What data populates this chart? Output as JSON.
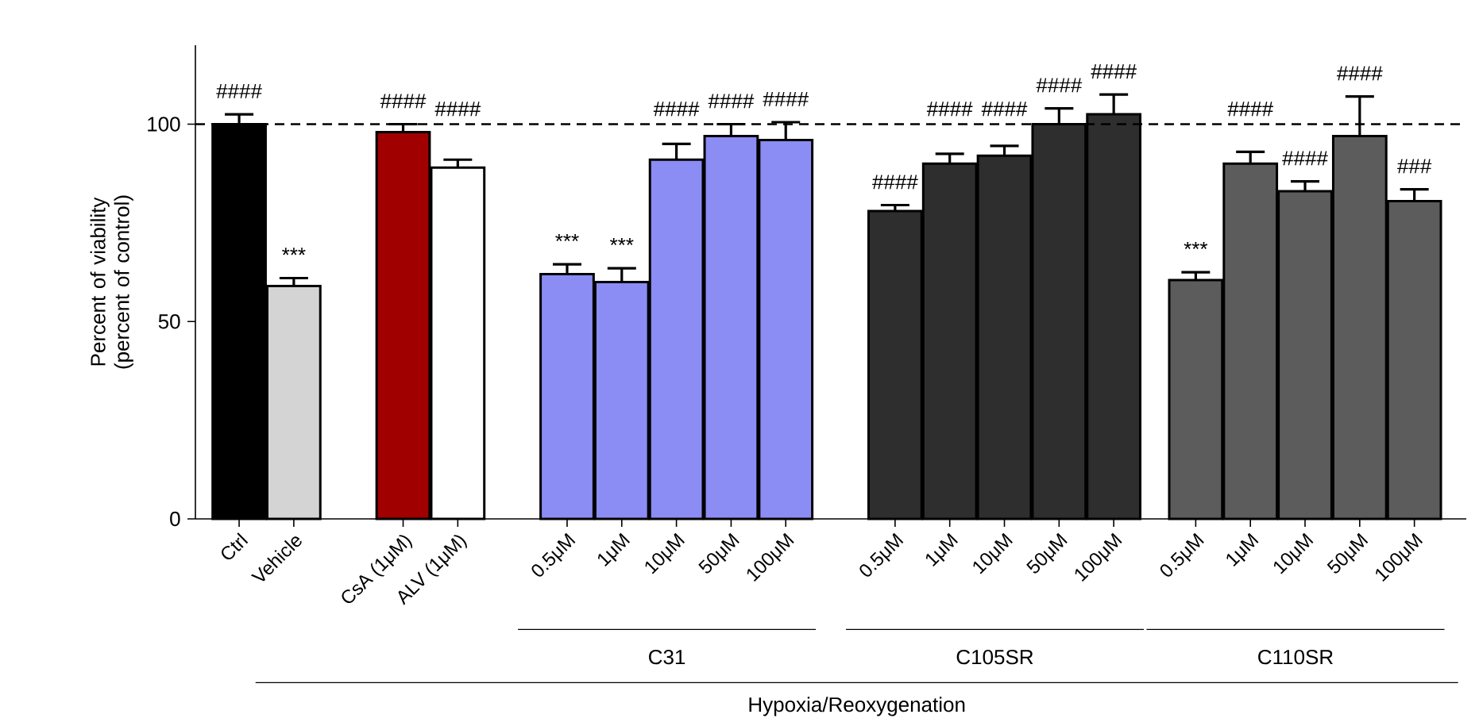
{
  "chart_data": {
    "type": "bar",
    "ylabel": "Percent of viability (percent of control)",
    "categories": [
      "Ctrl",
      "Vehicle",
      "CsA (1μM)",
      "ALV (1μM)",
      "0.5μM",
      "1μM",
      "10μM",
      "50μM",
      "100μM",
      "0.5μM",
      "1μM",
      "10μM",
      "50μM",
      "100μM",
      "0.5μM",
      "1μM",
      "10μM",
      "50μM",
      "100μM"
    ],
    "values": [
      100,
      59,
      98,
      89,
      62,
      60,
      91,
      97,
      96,
      78,
      90,
      92,
      100,
      102.5,
      60.5,
      90,
      83,
      97,
      80.5
    ],
    "errors": [
      [
        100,
        102.5
      ],
      [
        59,
        61
      ],
      [
        98,
        100
      ],
      [
        89,
        91
      ],
      [
        62,
        64.5
      ],
      [
        60,
        63.5
      ],
      [
        91,
        95
      ],
      [
        97,
        100
      ],
      [
        96,
        100.5
      ],
      [
        78,
        79.5
      ],
      [
        90,
        92.5
      ],
      [
        92,
        94.5
      ],
      [
        100,
        104
      ],
      [
        102.5,
        107.5
      ],
      [
        60.5,
        62.5
      ],
      [
        90,
        93
      ],
      [
        83,
        85.5
      ],
      [
        97,
        107
      ],
      [
        80.5,
        83.5
      ]
    ],
    "colors": [
      "#000000",
      "#d4d4d4",
      "#a00000",
      "#ffffff",
      "#8c8cf5",
      "#8c8cf5",
      "#8c8cf5",
      "#8c8cf5",
      "#8c8cf5",
      "#2e2e2e",
      "#2e2e2e",
      "#2e2e2e",
      "#2e2e2e",
      "#2e2e2e",
      "#5c5c5c",
      "#5c5c5c",
      "#5c5c5c",
      "#5c5c5c",
      "#5c5c5c"
    ],
    "ylim": [
      0,
      120
    ],
    "yticks": [
      0,
      50,
      100
    ],
    "ref_lines": [
      {
        "axis": "y",
        "value": 100,
        "line_style": "dashed",
        "color": "#000000"
      }
    ],
    "annotations": [
      "####",
      "***",
      "####",
      "####",
      "***",
      "***",
      "####",
      "####",
      "####",
      "####",
      "####",
      "####",
      "####",
      "####",
      "***",
      "####",
      "####",
      "####",
      "###",
      "C31",
      "C105SR",
      "C110SR",
      "Hypoxia/Reoxygenation"
    ]
  }
}
